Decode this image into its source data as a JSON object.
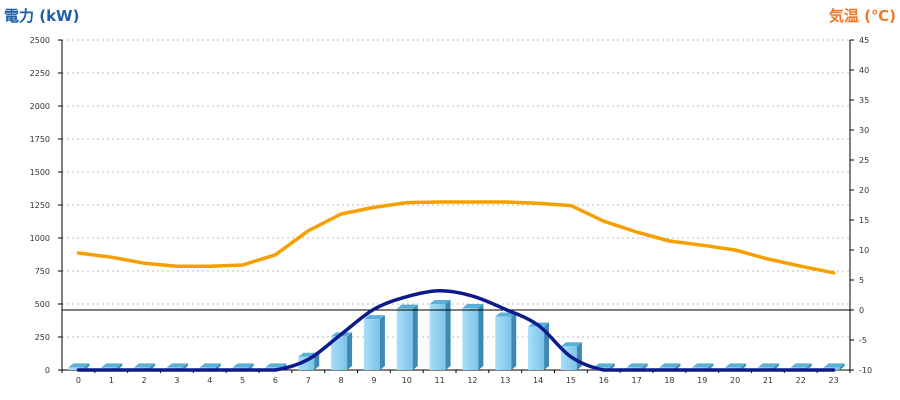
{
  "chart_data": {
    "type": "bar+line",
    "left_axis_title": "電力 (kW)",
    "right_axis_title": "気温 (℃)",
    "left_ylim": [
      0,
      2500
    ],
    "left_ticks": [
      0,
      250,
      500,
      750,
      1000,
      1250,
      1500,
      1750,
      2000,
      2250,
      2500
    ],
    "right_ylim": [
      -10,
      45
    ],
    "right_ticks": [
      -10,
      -5,
      0,
      5,
      10,
      15,
      20,
      25,
      30,
      35,
      40,
      45
    ],
    "categories": [
      "0",
      "1",
      "2",
      "3",
      "4",
      "5",
      "6",
      "7",
      "8",
      "9",
      "10",
      "11",
      "12",
      "13",
      "14",
      "15",
      "16",
      "17",
      "18",
      "19",
      "20",
      "21",
      "22",
      "23"
    ],
    "series": [
      {
        "kind": "bar",
        "color": "#87ceeb",
        "axis": "left",
        "values": [
          20,
          20,
          20,
          20,
          20,
          20,
          20,
          100,
          255,
          385,
          465,
          500,
          470,
          405,
          330,
          180,
          20,
          20,
          20,
          20,
          20,
          20,
          20,
          20
        ]
      },
      {
        "kind": "line",
        "color": "#0d1a8c",
        "axis": "left",
        "smooth": true,
        "values": [
          0,
          0,
          0,
          0,
          0,
          0,
          0,
          80,
          270,
          460,
          555,
          600,
          560,
          460,
          340,
          100,
          0,
          0,
          0,
          0,
          0,
          0,
          0,
          0
        ]
      },
      {
        "kind": "line",
        "color": "#f5a000",
        "axis": "right",
        "values": [
          9.5,
          8.8,
          7.8,
          7.3,
          7.3,
          7.5,
          9.2,
          13.2,
          16.0,
          17.1,
          17.9,
          18.0,
          18.0,
          18.0,
          17.8,
          17.4,
          14.8,
          13.0,
          11.5,
          10.8,
          10.0,
          8.5,
          7.3,
          6.2
        ]
      }
    ],
    "grid": "horizontal-dashed",
    "reference_line": {
      "axis": "right",
      "value": 0
    }
  }
}
